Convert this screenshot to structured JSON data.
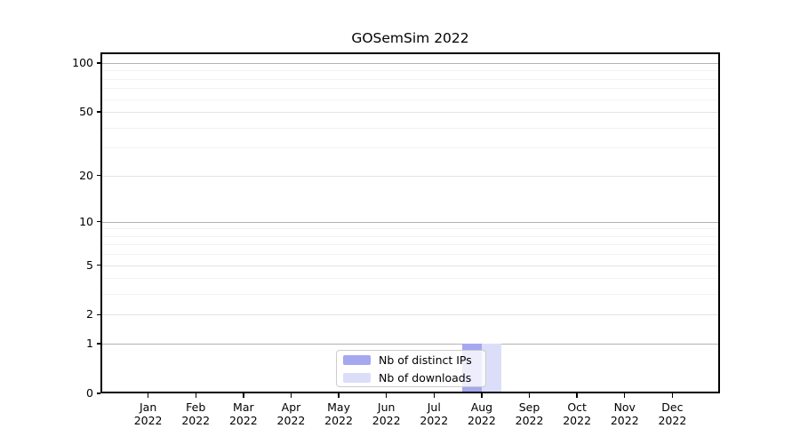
{
  "chart_data": {
    "type": "bar",
    "title": "GOSemSim 2022",
    "categories": [
      "Jan 2022",
      "Feb 2022",
      "Mar 2022",
      "Apr 2022",
      "May 2022",
      "Jun 2022",
      "Jul 2022",
      "Aug 2022",
      "Sep 2022",
      "Oct 2022",
      "Nov 2022",
      "Dec 2022"
    ],
    "series": [
      {
        "name": "Nb of distinct IPs",
        "color": "#a5a8ef",
        "values": [
          0,
          0,
          0,
          0,
          0,
          0,
          0,
          1,
          0,
          0,
          0,
          0
        ]
      },
      {
        "name": "Nb of downloads",
        "color": "#dcdef9",
        "values": [
          0,
          0,
          0,
          0,
          0,
          0,
          0,
          1,
          0,
          0,
          0,
          0
        ]
      }
    ],
    "xlabel": "",
    "ylabel": "",
    "y_axis": {
      "scale": "log1p",
      "ticks_major": [
        0,
        1,
        2,
        5,
        10,
        20,
        50,
        100
      ],
      "ticks_minor": [
        3,
        4,
        6,
        7,
        8,
        9,
        30,
        40,
        60,
        70,
        80,
        90
      ],
      "ylim": [
        0,
        116
      ]
    },
    "grid": true,
    "legend_position": "lower center"
  },
  "legend": {
    "items": [
      {
        "label": "Nb of distinct IPs",
        "color": "#a5a8ef"
      },
      {
        "label": "Nb of downloads",
        "color": "#dcdef9"
      }
    ]
  },
  "colors": {
    "grid_strong": "#b3b3b3",
    "grid_major": "#e3e3e3",
    "grid_minor": "#f2f2f2",
    "spine": "#000000",
    "legend_border": "#cccccc"
  }
}
